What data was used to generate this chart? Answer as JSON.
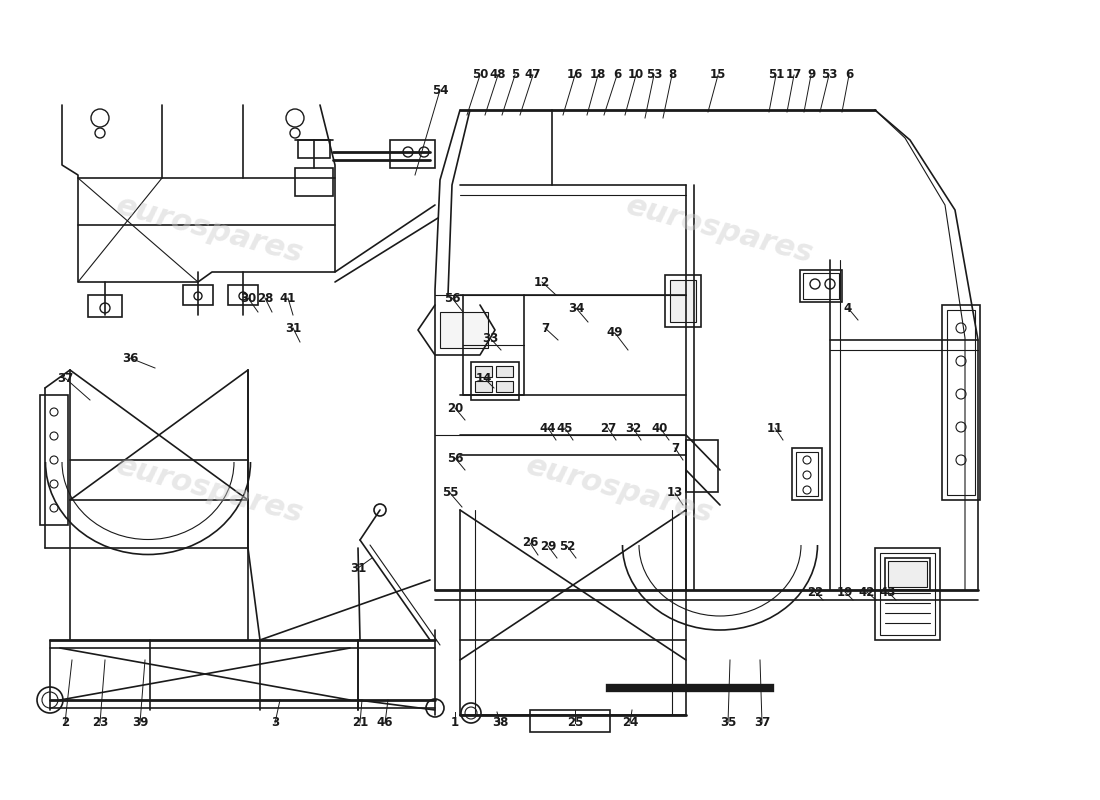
{
  "background_color": "#ffffff",
  "line_color": "#1a1a1a",
  "watermark_text": "eurospares",
  "top_labels": [
    [
      "54",
      440,
      90,
      415,
      175
    ],
    [
      "50",
      480,
      75,
      467,
      115
    ],
    [
      "48",
      498,
      75,
      485,
      115
    ],
    [
      "5",
      515,
      75,
      502,
      115
    ],
    [
      "47",
      533,
      75,
      520,
      115
    ],
    [
      "16",
      575,
      75,
      563,
      115
    ],
    [
      "18",
      598,
      75,
      587,
      115
    ],
    [
      "6",
      617,
      75,
      604,
      115
    ],
    [
      "10",
      636,
      75,
      625,
      115
    ],
    [
      "53",
      654,
      75,
      645,
      118
    ],
    [
      "8",
      672,
      75,
      663,
      118
    ],
    [
      "15",
      718,
      75,
      708,
      112
    ],
    [
      "51",
      776,
      75,
      769,
      112
    ],
    [
      "17",
      794,
      75,
      787,
      112
    ],
    [
      "9",
      811,
      75,
      804,
      112
    ],
    [
      "53",
      829,
      75,
      820,
      112
    ],
    [
      "6",
      849,
      75,
      842,
      112
    ]
  ],
  "bottom_labels": [
    [
      "2",
      65,
      723,
      72,
      660
    ],
    [
      "23",
      100,
      723,
      105,
      660
    ],
    [
      "39",
      140,
      723,
      145,
      660
    ],
    [
      "3",
      275,
      723,
      280,
      700
    ],
    [
      "21",
      360,
      723,
      362,
      700
    ],
    [
      "46",
      385,
      723,
      388,
      700
    ],
    [
      "1",
      455,
      723,
      455,
      712
    ],
    [
      "38",
      500,
      723,
      497,
      712
    ],
    [
      "25",
      575,
      723,
      575,
      710
    ],
    [
      "24",
      630,
      723,
      632,
      710
    ],
    [
      "35",
      728,
      723,
      730,
      660
    ],
    [
      "37",
      762,
      723,
      760,
      660
    ]
  ],
  "left_labels": [
    [
      "37",
      65,
      378,
      90,
      400
    ],
    [
      "36",
      130,
      358,
      155,
      368
    ],
    [
      "30",
      248,
      298,
      258,
      312
    ],
    [
      "28",
      265,
      298,
      272,
      312
    ],
    [
      "41",
      288,
      298,
      293,
      315
    ],
    [
      "31",
      293,
      328,
      300,
      342
    ],
    [
      "31",
      358,
      568,
      372,
      558
    ]
  ],
  "center_labels": [
    [
      "56",
      452,
      298,
      463,
      312
    ],
    [
      "12",
      542,
      282,
      556,
      295
    ],
    [
      "33",
      490,
      338,
      501,
      350
    ],
    [
      "7",
      545,
      328,
      558,
      340
    ],
    [
      "14",
      484,
      378,
      494,
      388
    ],
    [
      "34",
      576,
      308,
      588,
      322
    ],
    [
      "49",
      615,
      333,
      628,
      350
    ],
    [
      "20",
      455,
      408,
      465,
      420
    ],
    [
      "56",
      455,
      458,
      465,
      470
    ],
    [
      "55",
      450,
      493,
      462,
      507
    ],
    [
      "44",
      548,
      428,
      556,
      440
    ],
    [
      "45",
      565,
      428,
      573,
      440
    ],
    [
      "27",
      608,
      428,
      616,
      440
    ],
    [
      "32",
      633,
      428,
      641,
      440
    ],
    [
      "40",
      660,
      428,
      669,
      440
    ],
    [
      "7",
      675,
      448,
      683,
      460
    ],
    [
      "13",
      675,
      493,
      683,
      505
    ],
    [
      "26",
      530,
      543,
      538,
      555
    ],
    [
      "29",
      548,
      546,
      557,
      558
    ],
    [
      "52",
      567,
      546,
      576,
      558
    ],
    [
      "4",
      848,
      308,
      858,
      320
    ],
    [
      "11",
      775,
      428,
      783,
      440
    ],
    [
      "22",
      815,
      592,
      823,
      600
    ],
    [
      "19",
      845,
      592,
      853,
      600
    ],
    [
      "42",
      867,
      592,
      876,
      600
    ],
    [
      "43",
      888,
      592,
      896,
      600
    ]
  ]
}
